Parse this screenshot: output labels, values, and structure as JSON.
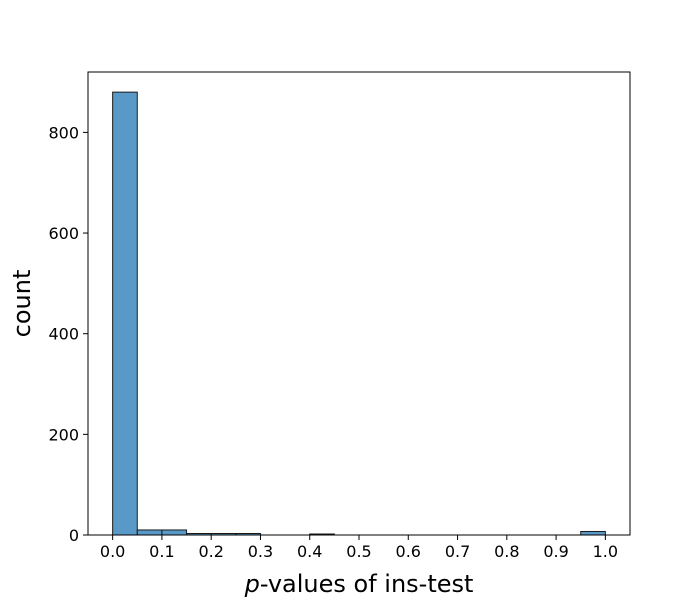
{
  "chart_data": {
    "type": "bar",
    "title": "",
    "xlabel_italic": "p",
    "xlabel_rest": "-values of ins-test",
    "ylabel": "count",
    "xlim": [
      -0.05,
      1.05
    ],
    "ylim": [
      0,
      920
    ],
    "x_ticks": [
      "0.0",
      "0.1",
      "0.2",
      "0.3",
      "0.4",
      "0.5",
      "0.6",
      "0.7",
      "0.8",
      "0.9",
      "1.0"
    ],
    "y_ticks": [
      "0",
      "200",
      "400",
      "600",
      "800"
    ],
    "bin_width": 0.05,
    "bin_starts": [
      0.0,
      0.05,
      0.1,
      0.15,
      0.2,
      0.25,
      0.3,
      0.35,
      0.4,
      0.45,
      0.5,
      0.55,
      0.6,
      0.65,
      0.7,
      0.75,
      0.8,
      0.85,
      0.9,
      0.95
    ],
    "values": [
      880,
      10,
      10,
      3,
      3,
      3,
      0,
      0,
      2,
      0,
      0,
      0,
      0,
      0,
      0,
      0,
      0,
      0,
      0,
      7
    ],
    "bar_color": "#5899c8",
    "edge_color": "#1a1a1a",
    "grid": false
  }
}
